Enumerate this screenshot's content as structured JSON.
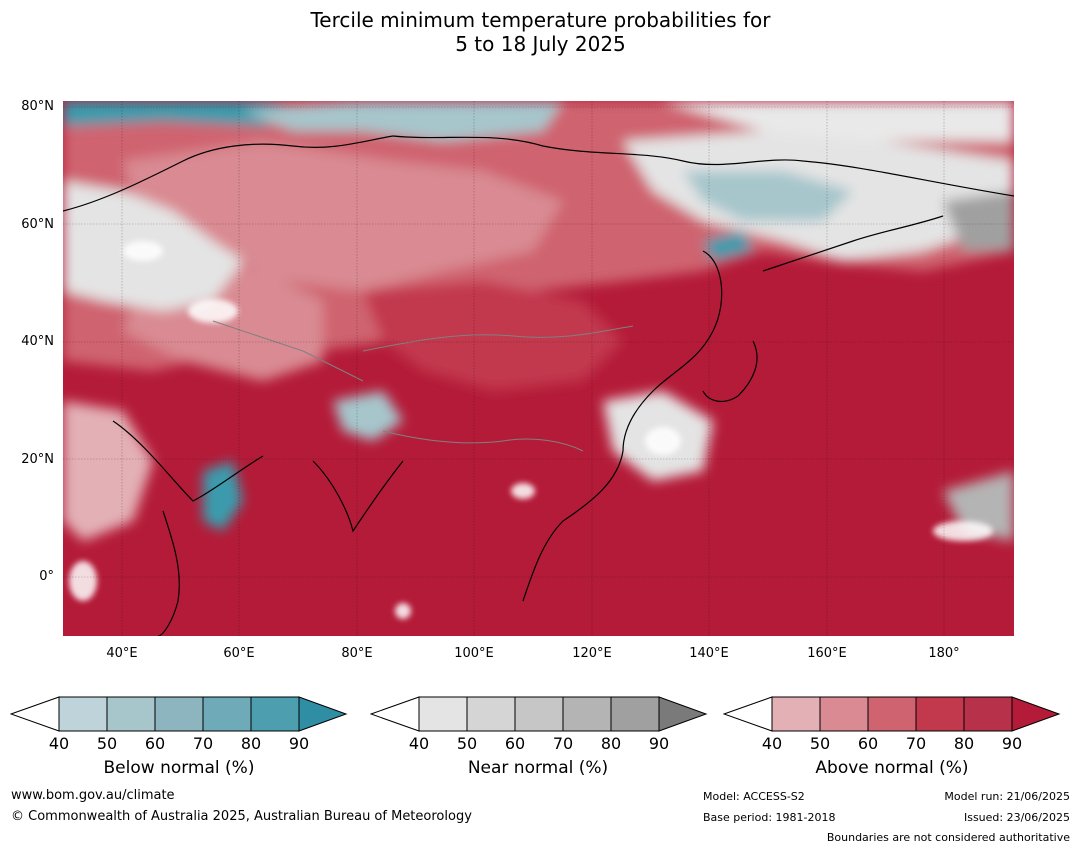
{
  "title": {
    "line1": "Tercile minimum temperature probabilities for",
    "line2": "5 to 18 July 2025"
  },
  "map": {
    "lat_labels": [
      "80°N",
      "60°N",
      "40°N",
      "20°N",
      "0°"
    ],
    "lon_labels": [
      "40°E",
      "60°E",
      "80°E",
      "100°E",
      "120°E",
      "140°E",
      "160°E",
      "180°"
    ],
    "extent": {
      "lon_min": 30,
      "lon_max": 192,
      "lat_min": -10,
      "lat_max": 81
    },
    "colors": {
      "above_90": "#b41b38",
      "above_80": "#c2384d",
      "above_70": "#cf6470",
      "above_60": "#d98a92",
      "above_50": "#e3b0b6",
      "near": "#e4e4e4",
      "near_dark": "#a0a0a0",
      "below_50": "#a6c6cc",
      "below_80": "#3b9bad",
      "white": "#ffffff",
      "coast": "#000000",
      "border": "#808080"
    }
  },
  "colorbars": [
    {
      "label": "Below normal (%)",
      "ticks": [
        "40",
        "50",
        "60",
        "70",
        "80",
        "90"
      ],
      "colors": [
        "#ffffff",
        "#bed4da",
        "#a6c6cc",
        "#8db5c0",
        "#6eaab7",
        "#4d9fb0",
        "#2f8ea4"
      ]
    },
    {
      "label": "Near normal (%)",
      "ticks": [
        "40",
        "50",
        "60",
        "70",
        "80",
        "90"
      ],
      "colors": [
        "#ffffff",
        "#e4e4e4",
        "#d5d5d5",
        "#c6c6c6",
        "#b4b4b4",
        "#a0a0a0",
        "#7a7a7a"
      ]
    },
    {
      "label": "Above normal (%)",
      "ticks": [
        "40",
        "50",
        "60",
        "70",
        "80",
        "90"
      ],
      "colors": [
        "#ffffff",
        "#e3b0b6",
        "#d98a92",
        "#cf6470",
        "#c2384d",
        "#b7314a",
        "#b41b38"
      ]
    }
  ],
  "footer": {
    "website": "www.bom.gov.au/climate",
    "copyright": "© Commonwealth of Australia 2025, Australian Bureau of Meteorology",
    "model": "Model: ACCESS-S2",
    "base_period": "Base period: 1981-2018",
    "model_run": "Model run: 21/06/2025",
    "issued": "Issued: 23/06/2025",
    "disclaimer": "Boundaries are not considered authoritative"
  }
}
